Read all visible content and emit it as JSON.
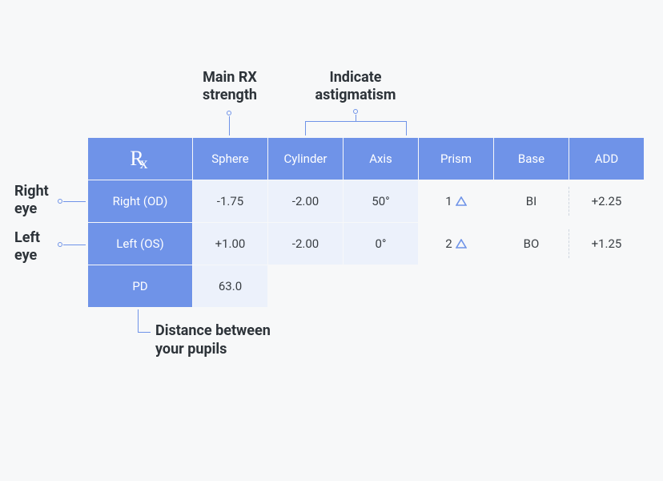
{
  "annotations": {
    "main_rx": "Main RX\nstrength",
    "indicate_astig": "Indicate\nastigmatism",
    "right_eye": "Right\neye",
    "left_eye": "Left\neye",
    "pd_desc": "Distance between\nyour pupils"
  },
  "headers": {
    "rx": "℞",
    "sphere": "Sphere",
    "cylinder": "Cylinder",
    "axis": "Axis",
    "prism": "Prism",
    "base": "Base",
    "add": "ADD"
  },
  "row_labels": {
    "right": "Right (OD)",
    "left": "Left (OS)",
    "pd": "PD"
  },
  "rows": {
    "right": {
      "sphere": "-1.75",
      "cylinder": "-2.00",
      "axis": "50°",
      "prism": "1",
      "base": "BI",
      "add": "+2.25"
    },
    "left": {
      "sphere": "+1.00",
      "cylinder": "-2.00",
      "axis": "0°",
      "prism": "2",
      "base": "BO",
      "add": "+1.25"
    },
    "pd": {
      "value": "63.0"
    }
  },
  "colors": {
    "header_bg": "#6f93e8",
    "header_text": "#ffffff",
    "data_bg": "#ecf1fb",
    "plain_bg": "#f7f8f9",
    "connector": "#6f93e8",
    "text": "#3a3f44",
    "anno_text": "#2d3339"
  }
}
